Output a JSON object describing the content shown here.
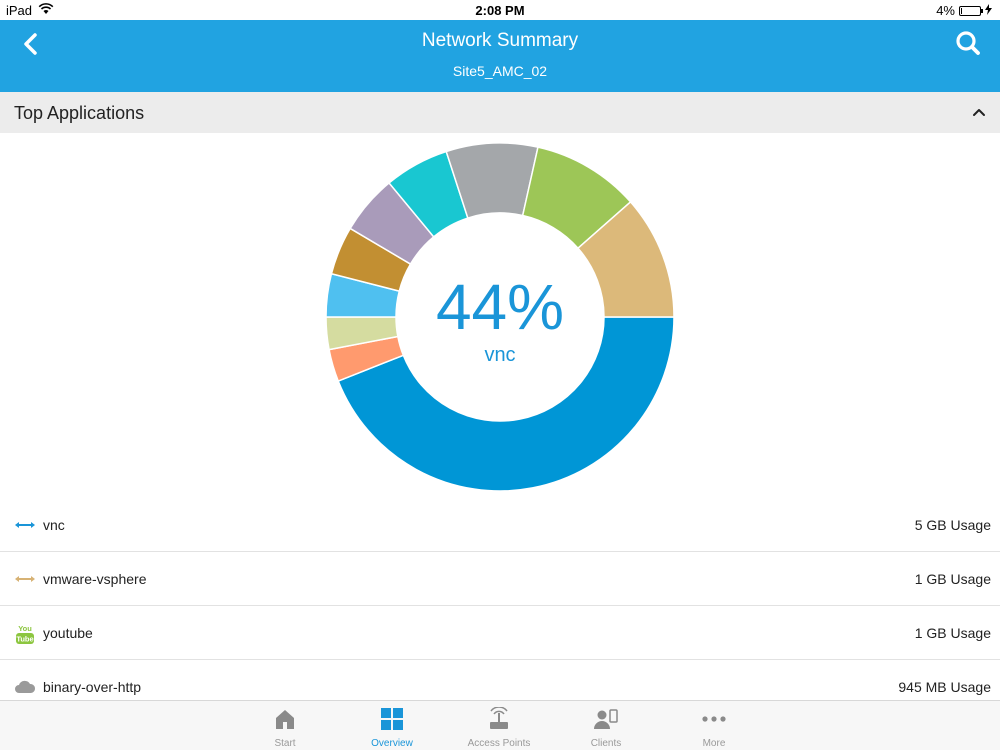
{
  "status_bar": {
    "device": "iPad",
    "time": "2:08 PM",
    "battery": "4%"
  },
  "header": {
    "title": "Network Summary",
    "subtitle": "Site5_AMC_02"
  },
  "section": {
    "title": "Top Applications"
  },
  "donut": {
    "center_value": "44%",
    "center_label": "vnc",
    "segments": [
      {
        "value": 44,
        "color": "#0096d6"
      },
      {
        "value": 3,
        "color": "#ff9a6e"
      },
      {
        "value": 3,
        "color": "#d5dca0"
      },
      {
        "value": 4,
        "color": "#4fc0f0"
      },
      {
        "value": 4.5,
        "color": "#c28f32"
      },
      {
        "value": 5.5,
        "color": "#a99bba"
      },
      {
        "value": 6,
        "color": "#19c7d1"
      },
      {
        "value": 8.5,
        "color": "#a4a7aa"
      },
      {
        "value": 10,
        "color": "#9dc657"
      },
      {
        "value": 11.5,
        "color": "#dcb97a"
      }
    ]
  },
  "apps": [
    {
      "name": "vnc",
      "usage": "5 GB Usage",
      "icon": "double-arrow-icon",
      "color": "#1a95d8"
    },
    {
      "name": "vmware-vsphere",
      "usage": "1 GB Usage",
      "icon": "double-arrow-icon",
      "color": "#d7b274"
    },
    {
      "name": "youtube",
      "usage": "1 GB Usage",
      "icon": "youtube-icon",
      "color": "#8cc63f"
    },
    {
      "name": "binary-over-http",
      "usage": "945 MB Usage",
      "icon": "cloud-icon",
      "color": "#9a9a9a"
    }
  ],
  "youtube_icon_text": {
    "top": "You",
    "bottom": "Tube"
  },
  "tabs": [
    {
      "label": "Start",
      "icon": "home-icon"
    },
    {
      "label": "Overview",
      "icon": "grid-icon",
      "active": true
    },
    {
      "label": "Access Points",
      "icon": "access-point-icon"
    },
    {
      "label": "Clients",
      "icon": "clients-icon"
    },
    {
      "label": "More",
      "icon": "more-icon"
    }
  ],
  "colors": {
    "accent": "#21a3e1",
    "active_tab": "#1a95d8",
    "inactive_tab": "#999999"
  }
}
